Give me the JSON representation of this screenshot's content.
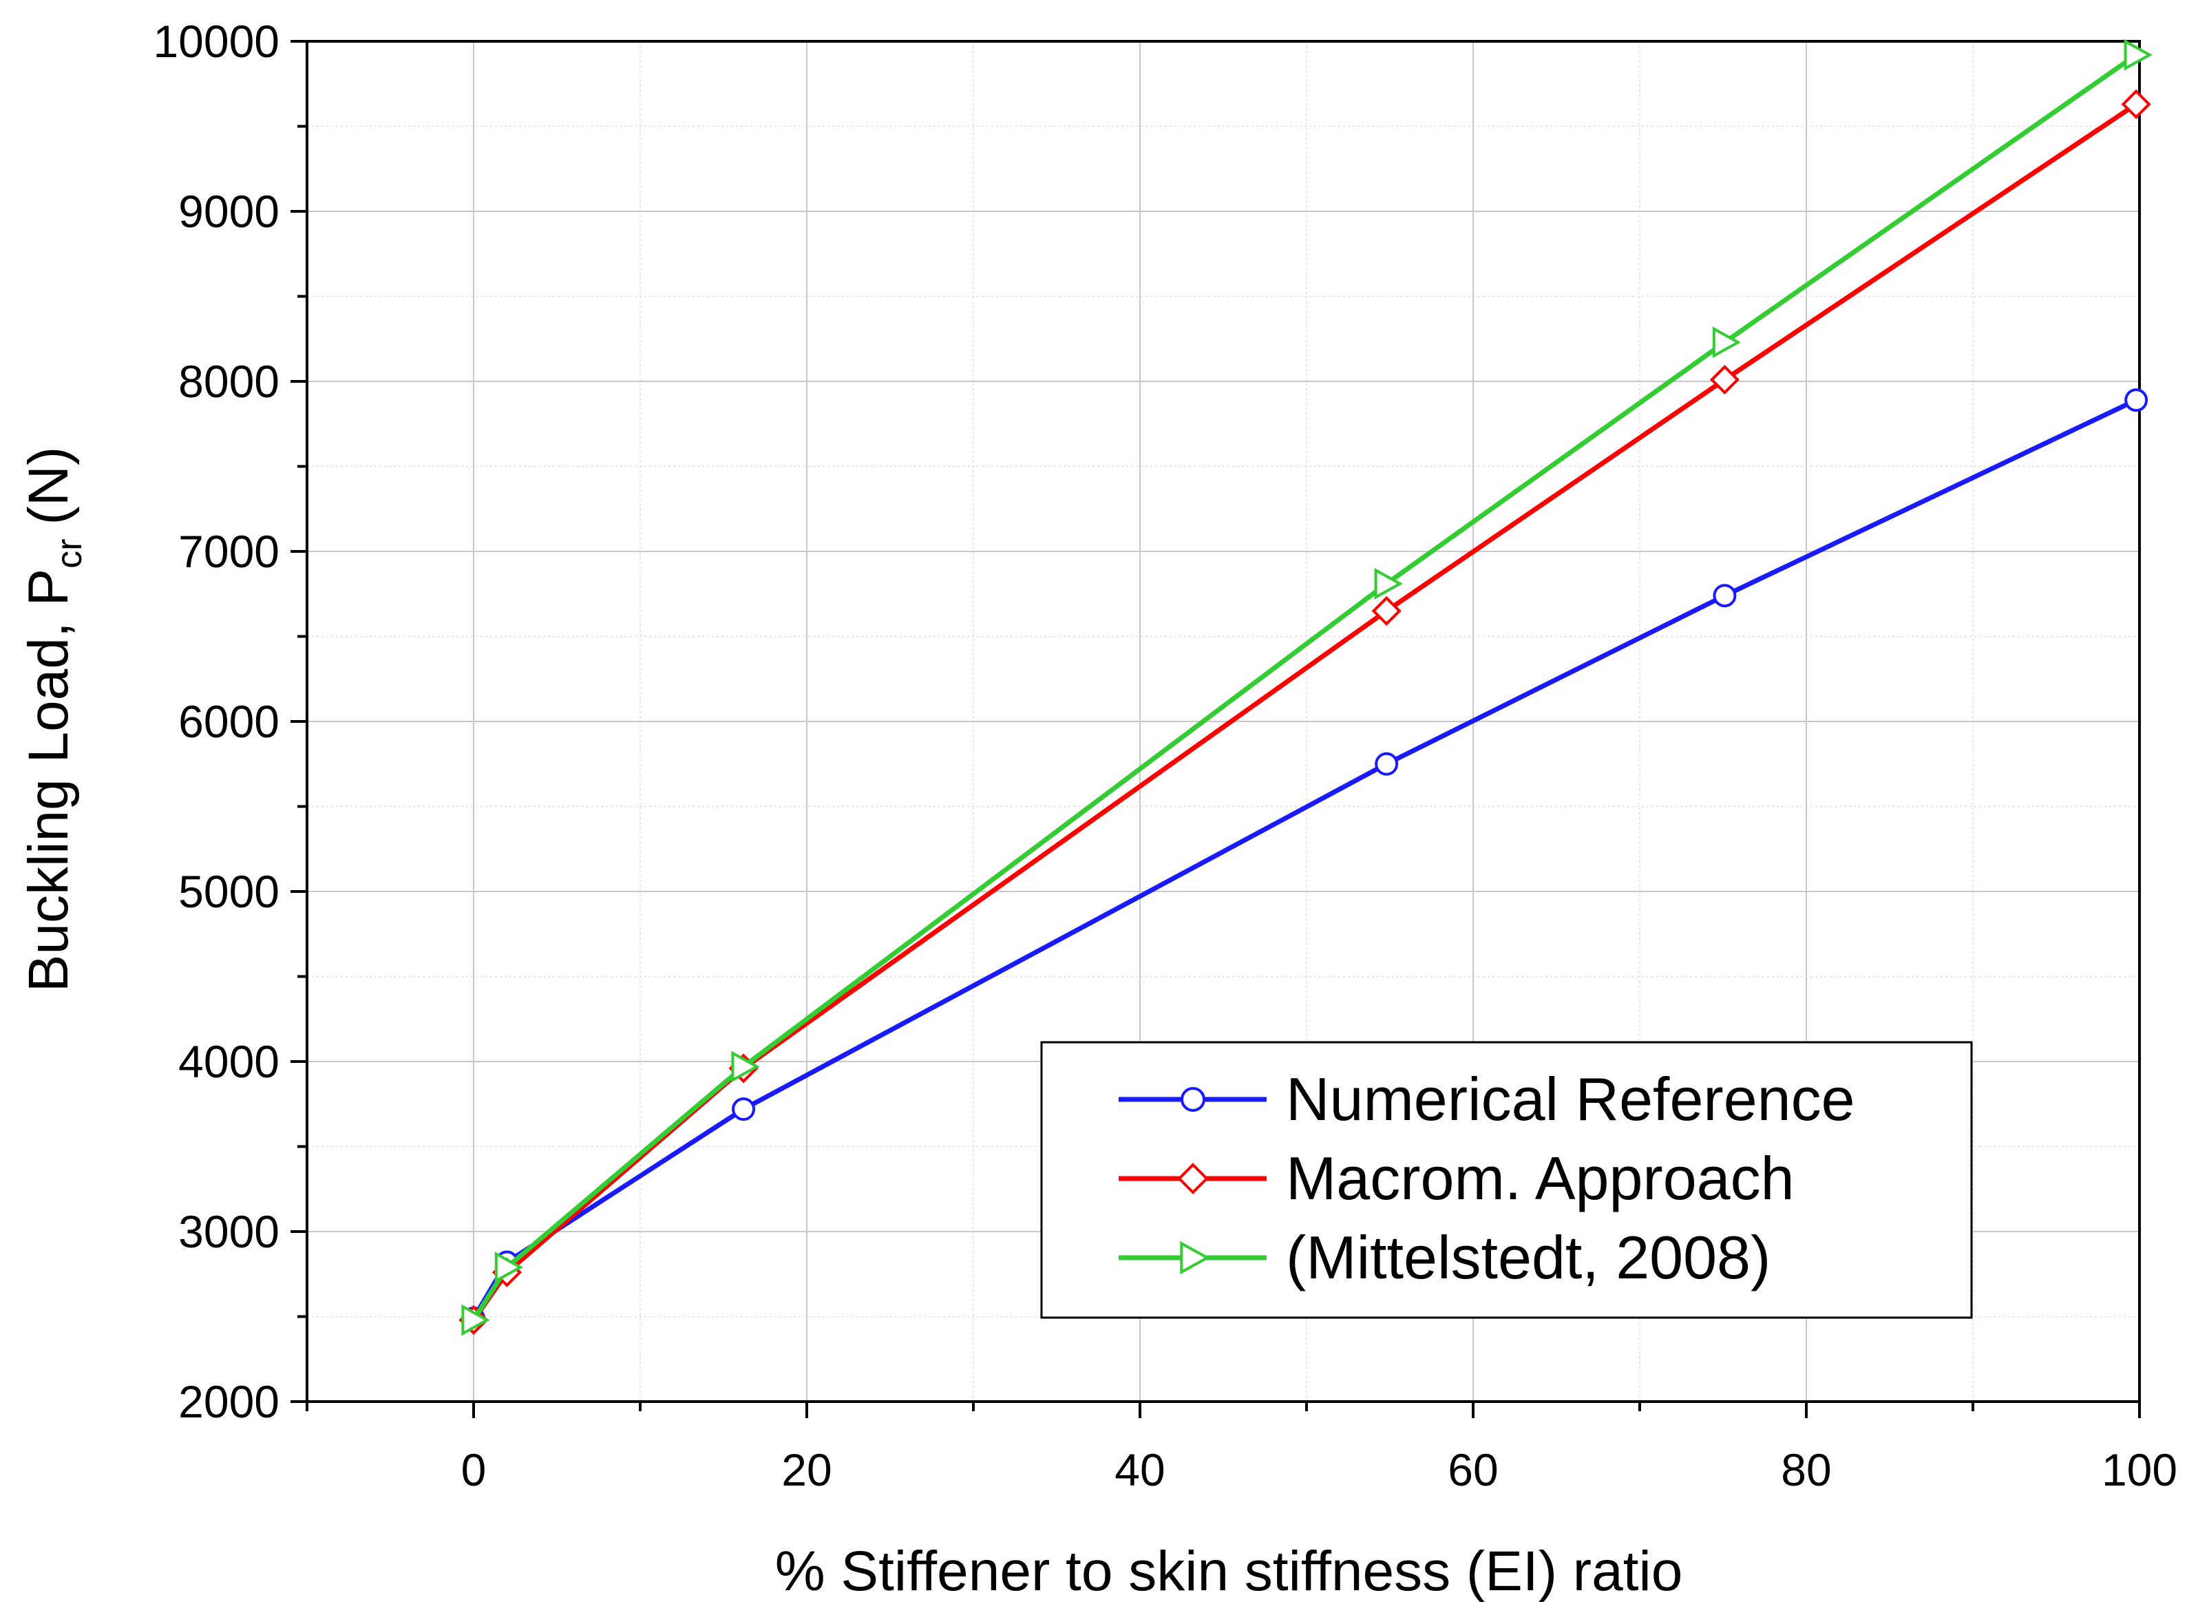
{
  "chart_data": {
    "type": "line",
    "title": "",
    "xlabel": "% Stiffener to skin stiffness (EI) ratio",
    "ylabel": "Buckling Load, P",
    "ylabel_subscript": "cr",
    "ylabel_suffix": "(N)",
    "xlim": [
      -10,
      100
    ],
    "ylim": [
      2000,
      10000
    ],
    "x_ticks": [
      0,
      20,
      40,
      60,
      80,
      100
    ],
    "x_tick_labels": [
      "0",
      "20",
      "40",
      "60",
      "80",
      "100"
    ],
    "y_ticks": [
      2000,
      3000,
      4000,
      5000,
      6000,
      7000,
      8000,
      9000,
      10000
    ],
    "y_tick_labels": [
      "2000",
      "3000",
      "4000",
      "5000",
      "6000",
      "7000",
      "8000",
      "9000",
      "10000"
    ],
    "grid": true,
    "legend_position": "bottom-right",
    "series": [
      {
        "name": "Numerical Reference",
        "color": "#1a1aff",
        "marker": "circle",
        "x": [
          0,
          2,
          16.2,
          54.8,
          75.1,
          99.8
        ],
        "values": [
          2490,
          2820,
          3720,
          5750,
          6740,
          7890
        ]
      },
      {
        "name": "Macrom. Approach",
        "color": "#ff0000",
        "marker": "diamond",
        "x": [
          0,
          2,
          16.2,
          54.8,
          75.1,
          99.8
        ],
        "values": [
          2480,
          2760,
          3960,
          6650,
          8010,
          9630
        ]
      },
      {
        "name": "(Mittelstedt, 2008)",
        "color": "#33cc33",
        "marker": "triangle-right",
        "x": [
          0,
          2,
          16.2,
          54.8,
          75.1,
          99.8
        ],
        "values": [
          2480,
          2790,
          3970,
          6810,
          8230,
          9920
        ]
      }
    ]
  }
}
